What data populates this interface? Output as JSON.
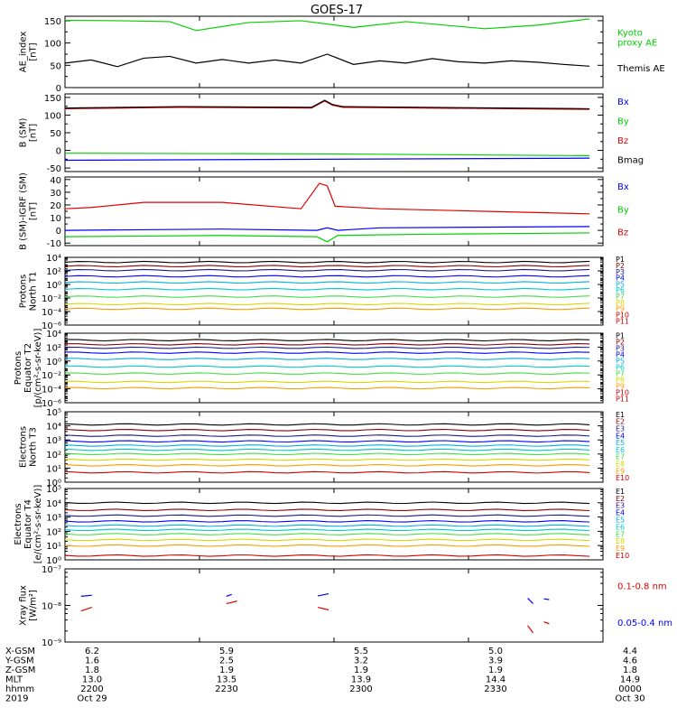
{
  "title": "GOES-17",
  "colors": {
    "black": "#000000",
    "green": "#00d000",
    "blue": "#0000ff",
    "red": "#e00000",
    "darkred": "#8b0000",
    "navy": "#1a1a8c",
    "cyan": "#00b0e0",
    "teal": "#00c8c8",
    "lime": "#44dd44",
    "yellow": "#d8d800",
    "orange": "#ff9900",
    "crimson": "#cc0000"
  },
  "chart_data": [
    {
      "type": "line",
      "ylabel": "AE_index\n[nT]",
      "ylim": [
        0,
        160
      ],
      "ticks": [
        0,
        50,
        100,
        150
      ],
      "ticklabels": [
        "0",
        "50",
        "100",
        "150"
      ],
      "series": [
        {
          "name": "Kyoto\nproxy AE",
          "color": "green",
          "x": [
            0,
            0.1,
            0.2,
            0.25,
            0.35,
            0.45,
            0.55,
            0.65,
            0.8,
            0.9,
            1.0
          ],
          "y": [
            151,
            150,
            148,
            128,
            146,
            150,
            135,
            148,
            132,
            140,
            154
          ]
        },
        {
          "name": "Themis AE",
          "color": "black",
          "x": [
            0,
            0.05,
            0.1,
            0.15,
            0.2,
            0.25,
            0.3,
            0.35,
            0.4,
            0.45,
            0.5,
            0.55,
            0.6,
            0.65,
            0.7,
            0.75,
            0.8,
            0.85,
            0.9,
            0.95,
            1.0
          ],
          "y": [
            55,
            62,
            47,
            66,
            70,
            55,
            63,
            55,
            62,
            55,
            75,
            52,
            60,
            55,
            65,
            58,
            55,
            60,
            57,
            52,
            48
          ]
        }
      ]
    },
    {
      "type": "line",
      "ylabel": "B (SM)\n[nT]",
      "ylim": [
        -60,
        160
      ],
      "ticks": [
        -50,
        0,
        50,
        100,
        150
      ],
      "ticklabels": [
        "-50",
        "0",
        "50",
        "100",
        "150"
      ],
      "series": [
        {
          "name": "Bx",
          "color": "blue",
          "x": [
            0,
            1.0
          ],
          "y": [
            -28,
            -22
          ]
        },
        {
          "name": "By",
          "color": "green",
          "x": [
            0,
            0.5,
            1.0
          ],
          "y": [
            -8,
            -10,
            -15
          ]
        },
        {
          "name": "Bz",
          "color": "red",
          "x": [
            0,
            0.22,
            0.47,
            0.495,
            0.51,
            0.53,
            1.0
          ],
          "y": [
            118,
            122,
            120,
            140,
            128,
            122,
            116
          ]
        },
        {
          "name": "Bmag",
          "color": "black",
          "x": [
            0,
            0.22,
            0.47,
            0.495,
            0.51,
            0.53,
            1.0
          ],
          "y": [
            120,
            124,
            122,
            142,
            130,
            124,
            118
          ]
        }
      ]
    },
    {
      "type": "line",
      "ylabel": "B (SM)-IGRF (SM)\n[nT]",
      "ylim": [
        -12,
        42
      ],
      "ticks": [
        -10,
        0,
        10,
        20,
        30,
        40
      ],
      "ticklabels": [
        "-10",
        "0",
        "10",
        "20",
        "30",
        "40"
      ],
      "series": [
        {
          "name": "Bx",
          "color": "blue",
          "x": [
            0,
            0.3,
            0.48,
            0.5,
            0.52,
            0.6,
            1.0
          ],
          "y": [
            0,
            1,
            0,
            2,
            0,
            2,
            3
          ]
        },
        {
          "name": "By",
          "color": "green",
          "x": [
            0,
            0.3,
            0.48,
            0.5,
            0.52,
            0.7,
            1.0
          ],
          "y": [
            -5,
            -4,
            -5,
            -9,
            -4,
            -3,
            -2
          ]
        },
        {
          "name": "Bz",
          "color": "red",
          "x": [
            0,
            0.05,
            0.15,
            0.3,
            0.45,
            0.485,
            0.5,
            0.515,
            0.6,
            0.8,
            1.0
          ],
          "y": [
            17,
            18,
            22,
            22,
            17,
            37,
            35,
            19,
            17,
            15,
            13
          ]
        }
      ]
    },
    {
      "type": "line",
      "ylabel": "Protons\nNorth T1",
      "log": true,
      "ylim": [
        -6,
        4
      ],
      "ticks": [
        -6,
        -4,
        -2,
        0,
        2,
        4
      ],
      "ticklabels": [
        "10⁻⁶",
        "10⁻⁴",
        "10⁻²",
        "10⁰",
        "10²",
        "10⁴"
      ],
      "series": [
        {
          "name": "P1",
          "color": "black",
          "y": 3.3
        },
        {
          "name": "P2",
          "color": "darkred",
          "y": 2.7
        },
        {
          "name": "P3",
          "color": "navy",
          "y": 2.1
        },
        {
          "name": "P4",
          "color": "blue",
          "y": 1.2
        },
        {
          "name": "P5",
          "color": "cyan",
          "y": 0.3
        },
        {
          "name": "P6",
          "color": "teal",
          "y": -0.7
        },
        {
          "name": "P7",
          "color": "lime",
          "y": -1.8
        },
        {
          "name": "P8",
          "color": "yellow",
          "y": -2.9
        },
        {
          "name": "P9",
          "color": "orange",
          "y": -3.6
        }
      ],
      "legend": [
        "P1",
        "P2",
        "P3",
        "P4",
        "P5",
        "P6",
        "P7",
        "P8",
        "P9",
        "P10",
        "P11"
      ]
    },
    {
      "type": "line",
      "ylabel": "Protons\nEquator T2\n[p/(cm²-s-sr-keV)]",
      "log": true,
      "ylim": [
        -6,
        4
      ],
      "ticks": [
        -6,
        -4,
        -2,
        0,
        2,
        4
      ],
      "ticklabels": [
        "10⁻⁶",
        "10⁻⁴",
        "10⁻²",
        "10⁰",
        "10²",
        "10⁴"
      ],
      "series": [
        {
          "name": "P1",
          "color": "black",
          "y": 3.0
        },
        {
          "name": "P2",
          "color": "darkred",
          "y": 2.4
        },
        {
          "name": "P3",
          "color": "navy",
          "y": 1.9
        },
        {
          "name": "P4",
          "color": "blue",
          "y": 1.2
        },
        {
          "name": "P5",
          "color": "cyan",
          "y": 0.3
        },
        {
          "name": "P6",
          "color": "teal",
          "y": -0.8
        },
        {
          "name": "P7",
          "color": "lime",
          "y": -1.8
        },
        {
          "name": "P8",
          "color": "yellow",
          "y": -3.0
        },
        {
          "name": "P9",
          "color": "orange",
          "y": -3.9
        }
      ],
      "legend": [
        "P1",
        "P2",
        "P3",
        "P4",
        "P5",
        "P6",
        "P7",
        "P8",
        "P9",
        "P10",
        "P11"
      ]
    },
    {
      "type": "line",
      "ylabel": "Electrons\nNorth T3",
      "log": true,
      "ylim": [
        0,
        5
      ],
      "ticks": [
        0,
        1,
        2,
        3,
        4,
        5
      ],
      "ticklabels": [
        "10⁰",
        "10¹",
        "10²",
        "10³",
        "10⁴",
        "10⁵"
      ],
      "series": [
        {
          "name": "E1",
          "color": "black",
          "y": 4.1
        },
        {
          "name": "E2",
          "color": "darkred",
          "y": 3.7
        },
        {
          "name": "E3",
          "color": "navy",
          "y": 3.3
        },
        {
          "name": "E4",
          "color": "blue",
          "y": 2.9
        },
        {
          "name": "E5",
          "color": "cyan",
          "y": 2.6
        },
        {
          "name": "E6",
          "color": "teal",
          "y": 2.3
        },
        {
          "name": "E7",
          "color": "lime",
          "y": 2.0
        },
        {
          "name": "E8",
          "color": "yellow",
          "y": 1.6
        },
        {
          "name": "E9",
          "color": "orange",
          "y": 1.2
        },
        {
          "name": "E10",
          "color": "crimson",
          "y": 0.7
        }
      ],
      "legend": [
        "E1",
        "E2",
        "E3",
        "E4",
        "E5",
        "E6",
        "E7",
        "E8",
        "E9",
        "E10"
      ]
    },
    {
      "type": "line",
      "ylabel": "Electrons\nEquator T4\n[e/(cm²-s-sr-keV)]",
      "log": true,
      "ylim": [
        0,
        5
      ],
      "ticks": [
        0,
        1,
        2,
        3,
        4,
        5
      ],
      "ticklabels": [
        "10⁰",
        "10¹",
        "10²",
        "10³",
        "10⁴",
        "10⁵"
      ],
      "series": [
        {
          "name": "E1",
          "color": "black",
          "y": 4.0
        },
        {
          "name": "E2",
          "color": "darkred",
          "y": 3.5
        },
        {
          "name": "E3",
          "color": "navy",
          "y": 3.1
        },
        {
          "name": "E4",
          "color": "blue",
          "y": 2.7
        },
        {
          "name": "E5",
          "color": "cyan",
          "y": 2.4
        },
        {
          "name": "E6",
          "color": "teal",
          "y": 2.1
        },
        {
          "name": "E7",
          "color": "lime",
          "y": 1.8
        },
        {
          "name": "E8",
          "color": "yellow",
          "y": 1.4
        },
        {
          "name": "E9",
          "color": "orange",
          "y": 1.0
        },
        {
          "name": "E10",
          "color": "crimson",
          "y": 0.3
        }
      ],
      "legend": [
        "E1",
        "E2",
        "E3",
        "E4",
        "E5",
        "E6",
        "E7",
        "E8",
        "E9",
        "E10"
      ]
    },
    {
      "type": "line",
      "ylabel": "Xray flux\n[W/m²]",
      "log": true,
      "ylim": [
        -9,
        -7
      ],
      "ticks": [
        -9,
        -8,
        -7
      ],
      "ticklabels": [
        "10⁻⁹",
        "10⁻⁸",
        "10⁻⁷"
      ],
      "series": [
        {
          "name": "0.1-0.8 nm",
          "color": "red",
          "segments": [
            [
              [
                0.03,
                -8.15
              ],
              [
                0.05,
                -8.05
              ]
            ],
            [
              [
                0.3,
                -7.95
              ],
              [
                0.32,
                -7.88
              ]
            ],
            [
              [
                0.47,
                -8.05
              ],
              [
                0.49,
                -8.12
              ]
            ],
            [
              [
                0.86,
                -8.55
              ],
              [
                0.87,
                -8.75
              ]
            ],
            [
              [
                0.89,
                -8.45
              ],
              [
                0.9,
                -8.5
              ]
            ]
          ]
        },
        {
          "name": "0.05-0.4 nm",
          "color": "blue",
          "segments": [
            [
              [
                0.03,
                -7.75
              ],
              [
                0.05,
                -7.72
              ]
            ],
            [
              [
                0.3,
                -7.75
              ],
              [
                0.31,
                -7.7
              ]
            ],
            [
              [
                0.47,
                -7.74
              ],
              [
                0.49,
                -7.68
              ]
            ],
            [
              [
                0.86,
                -7.8
              ],
              [
                0.87,
                -7.95
              ]
            ],
            [
              [
                0.89,
                -7.82
              ],
              [
                0.9,
                -7.84
              ]
            ]
          ]
        }
      ]
    }
  ],
  "xaxis": {
    "row_labels": [
      "X-GSM",
      "Y-GSM",
      "Z-GSM",
      "MLT",
      "hhmm",
      "2019"
    ],
    "columns": [
      [
        "6.2",
        "1.6",
        "1.8",
        "13.0",
        "2200",
        "Oct 29"
      ],
      [
        "5.9",
        "2.5",
        "1.9",
        "13.5",
        "2230",
        ""
      ],
      [
        "5.5",
        "3.2",
        "1.9",
        "13.9",
        "2300",
        ""
      ],
      [
        "5.0",
        "3.9",
        "1.9",
        "14.4",
        "2330",
        ""
      ],
      [
        "4.4",
        "4.6",
        "1.8",
        "14.9",
        "0000",
        "Oct 30"
      ]
    ]
  }
}
